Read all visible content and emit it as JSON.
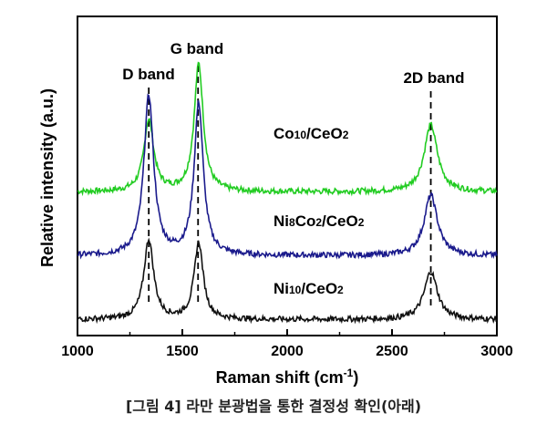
{
  "chart_data": {
    "type": "line",
    "xlabel": "Raman shift (cm",
    "xlabel_sup": "-1",
    "xlabel_close": ")",
    "ylabel": "Relative intensity (a.u.)",
    "xlim": [
      1000,
      3000
    ],
    "xticks": [
      1000,
      1500,
      2000,
      2500,
      3000
    ],
    "y_ticks_shown": false,
    "grid": false,
    "annotations": [
      {
        "label": "D band",
        "x": 1340
      },
      {
        "label": "G band",
        "x": 1575
      },
      {
        "label": "2D band",
        "x": 2685
      }
    ],
    "series": [
      {
        "name": "Co10/CeO2",
        "label_parts": [
          "Co",
          "10",
          "/CeO",
          "2"
        ],
        "color": "#22cc22",
        "baseline": 0.9,
        "peaks": [
          {
            "x": 1340,
            "height": 0.45
          },
          {
            "x": 1578,
            "height": 0.8
          },
          {
            "x": 2685,
            "height": 0.42
          }
        ]
      },
      {
        "name": "Ni8Co2/CeO2",
        "label_parts": [
          "Ni",
          "8",
          "Co",
          "2",
          "/CeO",
          "2"
        ],
        "color": "#1a1a8c",
        "baseline": 0.5,
        "peaks": [
          {
            "x": 1340,
            "height": 1.0
          },
          {
            "x": 1578,
            "height": 0.95
          },
          {
            "x": 2685,
            "height": 0.38
          }
        ]
      },
      {
        "name": "Ni10/CeO2",
        "label_parts": [
          "Ni",
          "10",
          "/CeO",
          "2"
        ],
        "color": "#111111",
        "baseline": 0.1,
        "peaks": [
          {
            "x": 1340,
            "height": 0.5
          },
          {
            "x": 1578,
            "height": 0.48
          },
          {
            "x": 2685,
            "height": 0.3
          }
        ]
      }
    ]
  },
  "caption": "[그림 4] 라만 분광법을 통한 결정성 확인(아래)"
}
